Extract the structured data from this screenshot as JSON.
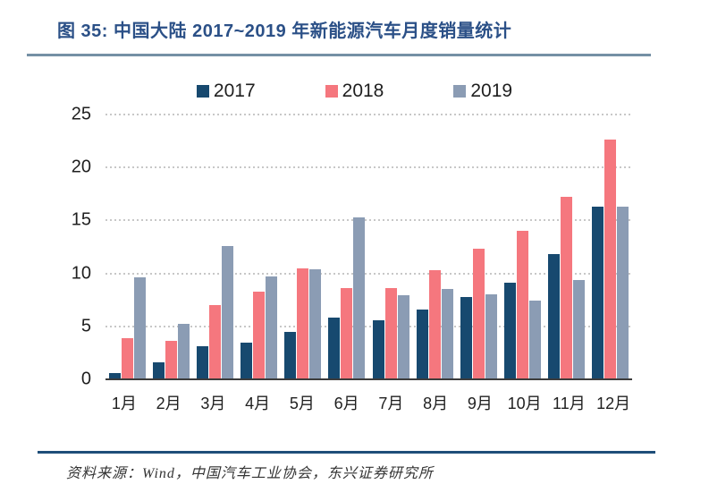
{
  "figure": {
    "title": "图 35: 中国大陆 2017~2019 年新能源汽车月度销量统计",
    "source": "资料来源：Wind，中国汽车工业协会，东兴证券研究所"
  },
  "colors": {
    "title_text": "#2b5087",
    "top_rule": "#7590a5",
    "bottom_rule": "#1f4e79",
    "gridline": "#c7c7c7",
    "axis_line": "#3c3c3c"
  },
  "chart_data": {
    "type": "bar",
    "title": "图 35: 中国大陆 2017~2019 年新能源汽车月度销量统计",
    "categories": [
      "1月",
      "2月",
      "3月",
      "4月",
      "5月",
      "6月",
      "7月",
      "8月",
      "9月",
      "10月",
      "11月",
      "12月"
    ],
    "series": [
      {
        "name": "2017",
        "color": "#17496f",
        "values": [
          0.6,
          1.6,
          3.1,
          3.5,
          4.5,
          5.8,
          5.6,
          6.6,
          7.8,
          9.1,
          11.8,
          16.3
        ]
      },
      {
        "name": "2018",
        "color": "#f5777e",
        "values": [
          3.9,
          3.6,
          7.0,
          8.3,
          10.5,
          8.6,
          8.6,
          10.3,
          12.3,
          14.0,
          17.2,
          22.6
        ]
      },
      {
        "name": "2019",
        "color": "#8b9cb4",
        "values": [
          9.6,
          5.2,
          12.6,
          9.7,
          10.4,
          15.3,
          7.9,
          8.5,
          8.0,
          7.4,
          9.4,
          16.3
        ]
      }
    ],
    "xlabel": "",
    "ylabel": "",
    "ylim": [
      0,
      25
    ],
    "yticks": [
      0,
      5,
      10,
      15,
      20,
      25
    ],
    "grid": "horizontal-dotted",
    "legend_position": "top-center"
  }
}
